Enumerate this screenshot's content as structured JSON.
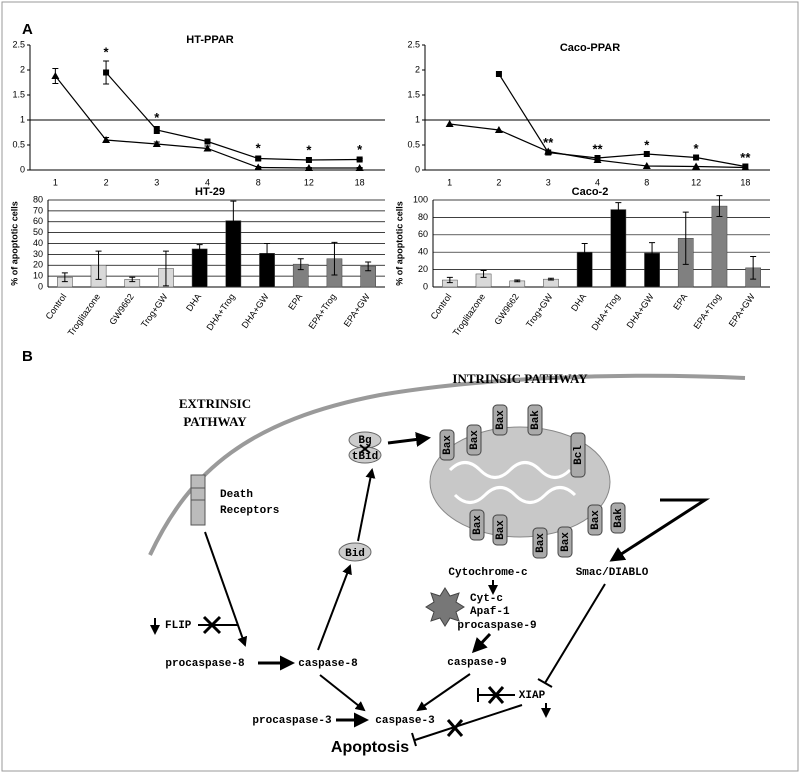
{
  "panel_labels": {
    "a": "A",
    "b": "B"
  },
  "chart_data": [
    {
      "type": "line",
      "title": "HT-PPAR",
      "categories": [
        "1",
        "2",
        "3",
        "4",
        "8",
        "12",
        "18"
      ],
      "series": [
        {
          "color": "#000000",
          "marker": "triangle",
          "values": [
            1.88,
            0.6,
            0.52,
            0.43,
            0.05,
            0.04,
            0.04
          ],
          "errors": [
            0.15,
            0.05,
            0.04,
            0.05,
            0.02,
            0.01,
            0.01
          ]
        },
        {
          "color": "#000000",
          "marker": "square",
          "values": [
            null,
            1.95,
            0.8,
            0.57,
            0.23,
            0.2,
            0.21
          ],
          "errors": [
            null,
            0.23,
            0.07,
            0.05,
            0.03,
            0.02,
            0.02
          ]
        }
      ],
      "annotations": [
        null,
        "*",
        "*",
        null,
        "*",
        "*",
        "*"
      ],
      "ylim": [
        0,
        2.5
      ],
      "yticks": [
        0,
        0.5,
        1,
        1.5,
        2,
        2.5
      ],
      "reference_line": 1
    },
    {
      "type": "line",
      "title": "Caco-PPAR",
      "categories": [
        "1",
        "2",
        "3",
        "4",
        "8",
        "12",
        "18"
      ],
      "series": [
        {
          "color": "#000000",
          "marker": "triangle",
          "values": [
            0.92,
            0.8,
            0.37,
            0.2,
            0.08,
            0.07,
            0.05
          ]
        },
        {
          "color": "#000000",
          "marker": "square",
          "values": [
            null,
            1.92,
            0.35,
            0.24,
            0.32,
            0.25,
            0.07
          ]
        }
      ],
      "annotations": [
        null,
        null,
        "**",
        "**",
        "*",
        "*",
        "**"
      ],
      "ylim": [
        0,
        2.5
      ],
      "yticks": [
        0,
        0.5,
        1,
        1.5,
        2,
        2.5
      ],
      "reference_line": 1
    },
    {
      "type": "bar",
      "title": "HT-29",
      "y_label": "% of apoptotic cells",
      "categories": [
        "Control",
        "Troglitazone",
        "GW9662",
        "Trog+GW",
        "DHA",
        "DHA+Trog",
        "DHA+GW",
        "EPA",
        "EPA+Trog",
        "EPA+GW"
      ],
      "values": [
        9,
        20,
        7,
        17,
        35,
        61,
        31,
        21,
        26,
        19
      ],
      "errors": [
        4,
        13,
        2,
        16,
        4,
        18,
        9,
        5,
        15,
        4
      ],
      "colors": [
        "#d9d9d9",
        "#d9d9d9",
        "#d9d9d9",
        "#d9d9d9",
        "#000000",
        "#000000",
        "#000000",
        "#808080",
        "#808080",
        "#808080"
      ],
      "ylim": [
        0,
        80
      ],
      "yticks": [
        0,
        10,
        20,
        30,
        40,
        50,
        60,
        70,
        80
      ],
      "grid": true
    },
    {
      "type": "bar",
      "title": "Caco-2",
      "y_label": "% of apoptotic cells",
      "categories": [
        "Control",
        "Troglitazone",
        "GW9662",
        "Trog+GW",
        "DHA",
        "DHA+Trog",
        "DHA+GW",
        "EPA",
        "EPA+Trog",
        "EPA+GW"
      ],
      "values": [
        8,
        15,
        7,
        9,
        40,
        89,
        39,
        56,
        93,
        22
      ],
      "errors": [
        3,
        4,
        1,
        1,
        10,
        8,
        12,
        30,
        12,
        13
      ],
      "colors": [
        "#d9d9d9",
        "#d9d9d9",
        "#d9d9d9",
        "#d9d9d9",
        "#000000",
        "#000000",
        "#000000",
        "#808080",
        "#808080",
        "#808080"
      ],
      "ylim": [
        0,
        100
      ],
      "yticks": [
        0,
        20,
        40,
        60,
        80,
        100
      ],
      "grid": true
    }
  ],
  "diagram": {
    "extrinsic": [
      "EXTRINSIC",
      "PATHWAY"
    ],
    "intrinsic": "INTRINSIC PATHWAY",
    "death_receptors": [
      "Death",
      "Receptors"
    ],
    "bg": "Bg",
    "tbid": "tBid",
    "bid": "Bid",
    "mitochondrial_proteins": [
      "Bax",
      "Bax",
      "Bax",
      "Bak",
      "Bcl",
      "Bax",
      "Bax",
      "Bax",
      "Bax",
      "Bax",
      "Bak"
    ],
    "cytochrome_c": "Cytochrome-c",
    "smac": "Smac/DIABLO",
    "cyt_c": "Cyt-c",
    "apaf": "Apaf-1",
    "procaspase9": "procaspase-9",
    "caspase9": "caspase-9",
    "flip": "FLIP",
    "procaspase8": "procaspase-8",
    "caspase8": "caspase-8",
    "procaspase3": "procaspase-3",
    "caspase3": "caspase-3",
    "xiap": "XIAP",
    "apoptosis": "Apoptosis"
  }
}
